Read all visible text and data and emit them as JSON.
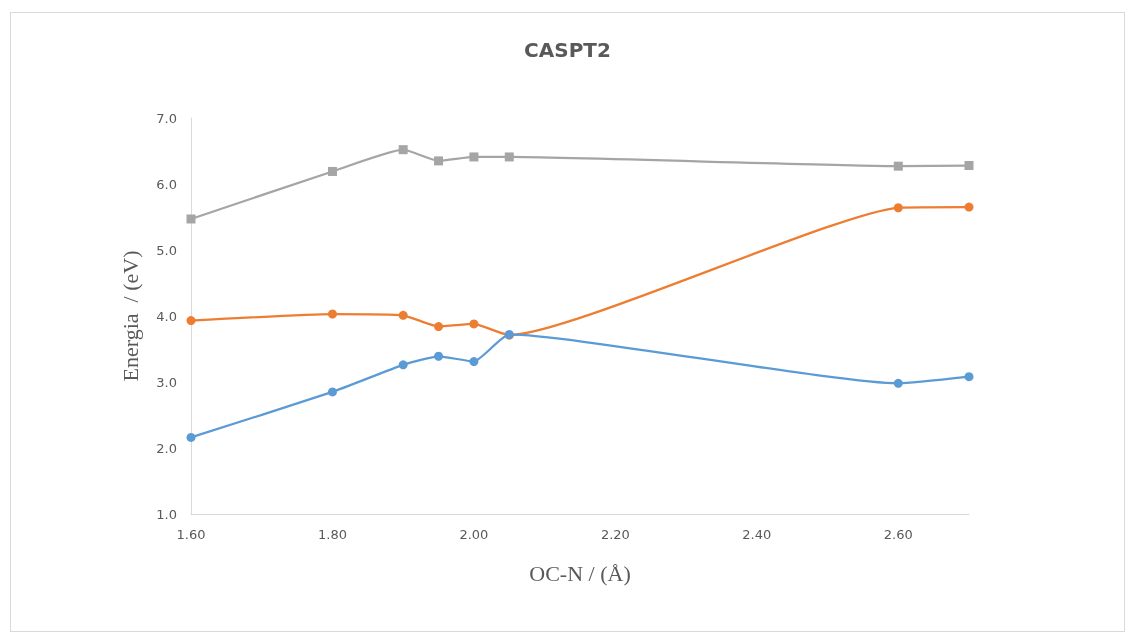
{
  "chart_data": {
    "type": "line",
    "title": "CASPT2",
    "xlabel": "OC-N / (Å)",
    "ylabel": "Energia  / (eV)",
    "x": [
      1.6,
      1.8,
      1.9,
      1.95,
      2.0,
      2.05,
      2.6,
      2.7
    ],
    "series": [
      {
        "color": "#5b9bd5",
        "marker": "circle",
        "values": [
          2.16,
          2.85,
          3.26,
          3.39,
          3.31,
          3.72,
          2.98,
          3.08
        ]
      },
      {
        "color": "#ed7d31",
        "marker": "circle",
        "values": [
          3.93,
          4.03,
          4.01,
          3.84,
          3.88,
          3.71,
          5.64,
          5.65
        ]
      },
      {
        "color": "#a5a5a5",
        "marker": "square",
        "values": [
          5.47,
          6.19,
          6.52,
          6.35,
          6.41,
          6.41,
          6.27,
          6.28
        ]
      }
    ],
    "xlim": [
      1.6,
      2.7
    ],
    "xticks": [
      {
        "value": 1.6,
        "label": "1.60"
      },
      {
        "value": 1.8,
        "label": "1.80"
      },
      {
        "value": 2.0,
        "label": "2.00"
      },
      {
        "value": 2.2,
        "label": "2.20"
      },
      {
        "value": 2.4,
        "label": "2.40"
      },
      {
        "value": 2.6,
        "label": "2.60"
      }
    ],
    "ylim": [
      1,
      7
    ],
    "yticks": [
      {
        "value": 1,
        "label": "1.0"
      },
      {
        "value": 2,
        "label": "2.0"
      },
      {
        "value": 3,
        "label": "3.0"
      },
      {
        "value": 4,
        "label": "4.0"
      },
      {
        "value": 5,
        "label": "5.0"
      },
      {
        "value": 6,
        "label": "6.0"
      },
      {
        "value": 7,
        "label": "7.0"
      }
    ],
    "grid": false,
    "line_style": "solid"
  }
}
